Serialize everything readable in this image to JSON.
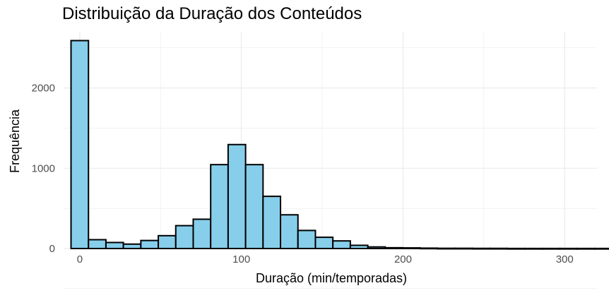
{
  "chart_data": {
    "type": "bar",
    "title": "Distribuição da Duração dos Conteúdos",
    "xlabel": "Duração (min/temporadas)",
    "ylabel": "Frequência",
    "xlim": [
      -10,
      320
    ],
    "ylim": [
      0,
      2700
    ],
    "x_ticks": [
      0,
      100,
      200,
      300
    ],
    "y_ticks": [
      0,
      1000,
      2000
    ],
    "bin_width": 10.8,
    "bin_start": -5.4,
    "values": [
      2590,
      110,
      75,
      55,
      100,
      160,
      285,
      365,
      1045,
      1295,
      1045,
      650,
      420,
      225,
      140,
      95,
      40,
      20,
      10,
      8,
      5,
      3,
      3,
      2,
      2,
      1,
      1,
      1,
      1,
      1,
      1,
      1,
      1,
      1,
      1
    ],
    "grid": true,
    "colors": {
      "fill": "#87CEEB",
      "stroke": "#000000",
      "grid": "#ebebeb"
    }
  }
}
